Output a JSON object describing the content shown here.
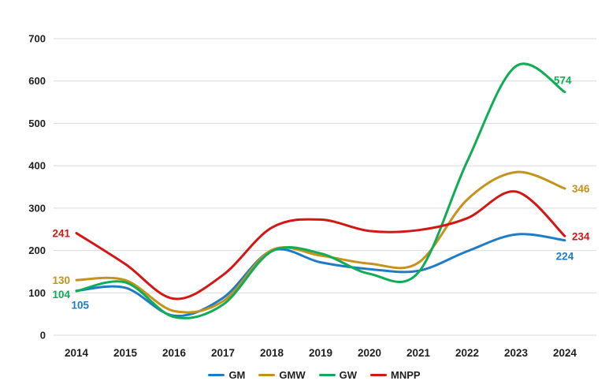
{
  "chart_data": {
    "type": "line",
    "title": "",
    "categories": [
      "2014",
      "2015",
      "2016",
      "2017",
      "2018",
      "2019",
      "2020",
      "2021",
      "2022",
      "2023",
      "2024"
    ],
    "series": [
      {
        "name": "GM",
        "color": "#1e7cc7",
        "values": [
          105,
          112,
          46,
          88,
          200,
          172,
          156,
          152,
          198,
          238,
          224
        ],
        "start_label": "105",
        "end_label": "224"
      },
      {
        "name": "GMW",
        "color": "#c5921b",
        "values": [
          130,
          130,
          57,
          80,
          201,
          188,
          169,
          171,
          320,
          385,
          346
        ],
        "start_label": "130",
        "end_label": "346"
      },
      {
        "name": "GW",
        "color": "#0fad55",
        "values": [
          104,
          125,
          43,
          72,
          198,
          193,
          145,
          148,
          410,
          635,
          574
        ],
        "start_label": "104",
        "end_label": "574"
      },
      {
        "name": "MNPP",
        "color": "#d21715",
        "values": [
          241,
          168,
          86,
          142,
          254,
          273,
          246,
          248,
          276,
          339,
          234
        ],
        "start_label": "241",
        "end_label": "234"
      }
    ],
    "xlabel": "",
    "ylabel": "",
    "ylim": [
      0,
      700
    ],
    "yticks": [
      0,
      100,
      200,
      300,
      400,
      500,
      600,
      700
    ],
    "grid": "horizontal",
    "gridline_color": "#d9d9d9",
    "axis_text_color": "#1f1f1f",
    "legend_position": "bottom"
  }
}
